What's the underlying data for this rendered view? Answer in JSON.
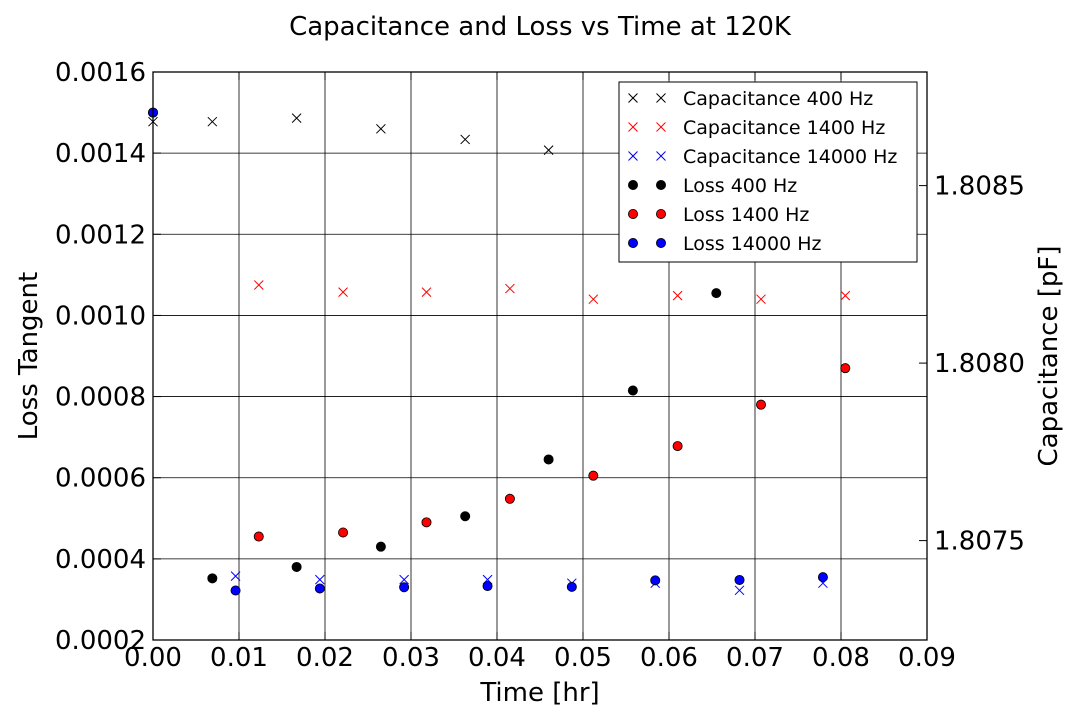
{
  "chart_data": {
    "type": "scatter",
    "title": "Capacitance and Loss vs Time at 120K",
    "xlabel": "Time [hr]",
    "ylabel": "Loss Tangent",
    "y2label": "Capacitance [pF]",
    "xlim": [
      0.0,
      0.09
    ],
    "ylim": [
      0.0002,
      0.0016
    ],
    "y2lim": [
      1.80722,
      1.80882
    ],
    "x_ticks": [
      "0.00",
      "0.01",
      "0.02",
      "0.03",
      "0.04",
      "0.05",
      "0.06",
      "0.07",
      "0.08",
      "0.09"
    ],
    "y_ticks": [
      "0.0002",
      "0.0004",
      "0.0006",
      "0.0008",
      "0.0010",
      "0.0012",
      "0.0014",
      "0.0016"
    ],
    "y2_ticks": [
      "1.8075",
      "1.8080",
      "1.8085"
    ],
    "grid": true,
    "legend_position": "top-right",
    "series": [
      {
        "name": "Capacitance 400 Hz",
        "axis": "right",
        "marker": "x",
        "color": "#000000",
        "x": [
          0.0,
          0.0069,
          0.0167,
          0.0265,
          0.0363,
          0.046,
          0.0558,
          0.0655
        ],
        "y": [
          1.80868,
          1.80868,
          1.80869,
          1.80866,
          1.80863,
          1.8086,
          1.80857,
          1.80854
        ]
      },
      {
        "name": "Capacitance 1400 Hz",
        "axis": "right",
        "marker": "x",
        "color": "#ff0000",
        "x": [
          0.0123,
          0.0221,
          0.0318,
          0.0415,
          0.0512,
          0.061,
          0.0707,
          0.0805
        ],
        "y": [
          1.80822,
          1.8082,
          1.8082,
          1.80821,
          1.80818,
          1.80819,
          1.80818,
          1.80819
        ]
      },
      {
        "name": "Capacitance 14000 Hz",
        "axis": "right",
        "marker": "x",
        "color": "#0000ff",
        "x": [
          0.0096,
          0.0194,
          0.0292,
          0.0389,
          0.0487,
          0.0584,
          0.0682,
          0.0779
        ],
        "y": [
          1.8074,
          1.80739,
          1.80739,
          1.80739,
          1.80738,
          1.80738,
          1.80736,
          1.80738
        ]
      },
      {
        "name": "Loss 400 Hz",
        "axis": "left",
        "marker": "o",
        "color": "#000000",
        "x": [
          0.0,
          0.0069,
          0.0167,
          0.0265,
          0.0363,
          0.046,
          0.0558,
          0.0655
        ],
        "y": [
          0.0015,
          0.000352,
          0.00038,
          0.00043,
          0.000505,
          0.000645,
          0.000815,
          0.001055
        ]
      },
      {
        "name": "Loss 1400 Hz",
        "axis": "left",
        "marker": "o",
        "color": "#ff0000",
        "x": [
          0.0123,
          0.0221,
          0.0318,
          0.0415,
          0.0512,
          0.061,
          0.0707,
          0.0805
        ],
        "y": [
          0.000455,
          0.000465,
          0.00049,
          0.000548,
          0.000605,
          0.000678,
          0.00078,
          0.00087
        ]
      },
      {
        "name": "Loss 14000 Hz",
        "axis": "left",
        "marker": "o",
        "color": "#0000ff",
        "x": [
          0.0,
          0.0096,
          0.0194,
          0.0292,
          0.0389,
          0.0487,
          0.0584,
          0.0682,
          0.0779
        ],
        "y": [
          0.0015,
          0.000322,
          0.000327,
          0.00033,
          0.000333,
          0.000331,
          0.000347,
          0.000348,
          0.000355
        ]
      }
    ]
  }
}
